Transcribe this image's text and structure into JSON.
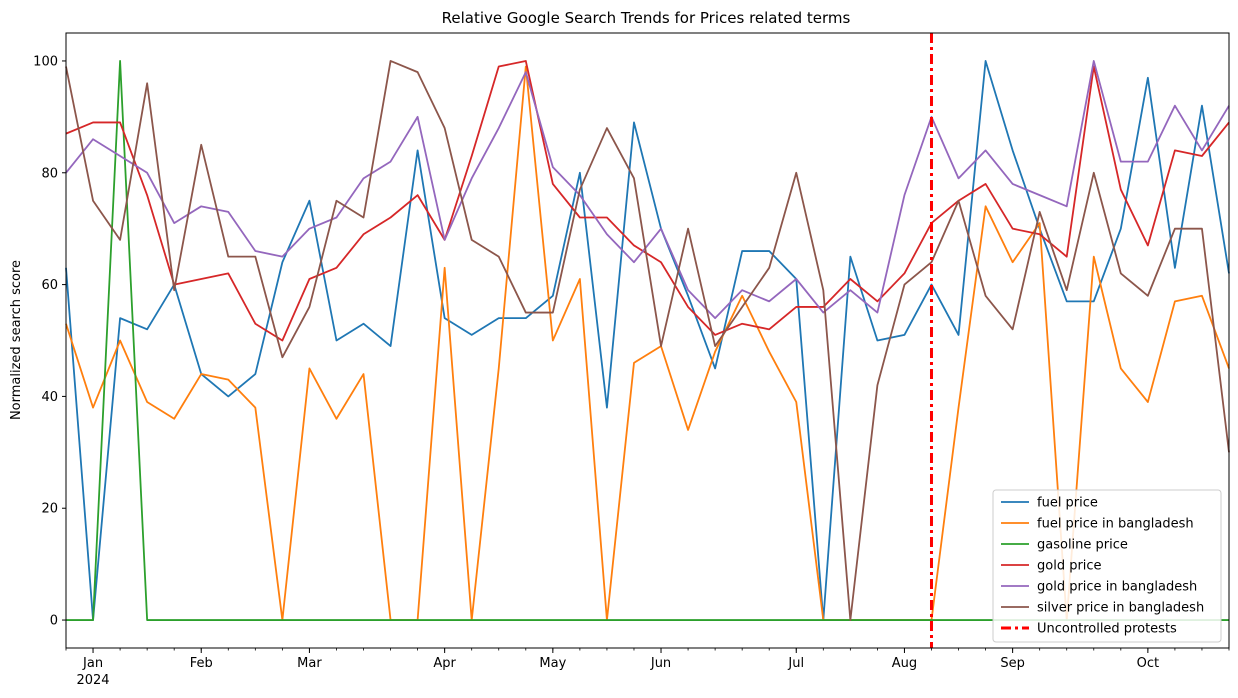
{
  "chart_data": {
    "type": "line",
    "title": "Relative Google Search Trends for Prices related terms",
    "xlabel": "",
    "ylabel": "Normalized search score",
    "ylim": [
      -5,
      105
    ],
    "yticks": [
      0,
      20,
      40,
      60,
      80,
      100
    ],
    "ytick_labels": [
      "0",
      "20",
      "40",
      "60",
      "80",
      "100"
    ],
    "x_start_week": 0,
    "x_range_weeks": [
      0,
      43
    ],
    "x_month_ticks": [
      {
        "label": "Jan",
        "week": 1,
        "sublabel": "2024"
      },
      {
        "label": "Feb",
        "week": 5
      },
      {
        "label": "Mar",
        "week": 9
      },
      {
        "label": "Apr",
        "week": 14
      },
      {
        "label": "May",
        "week": 18
      },
      {
        "label": "Jun",
        "week": 22
      },
      {
        "label": "Jul",
        "week": 27
      },
      {
        "label": "Aug",
        "week": 31
      },
      {
        "label": "Sep",
        "week": 35
      },
      {
        "label": "Oct",
        "week": 40
      }
    ],
    "vertical_line": {
      "name": "Uncontrolled protests",
      "week": 32,
      "color": "#ff0000"
    },
    "legend_location": "lower-right",
    "series": [
      {
        "name": "fuel price",
        "color": "#1f77b4",
        "values": [
          63,
          0,
          54,
          52,
          60,
          44,
          40,
          44,
          64,
          75,
          50,
          53,
          49,
          84,
          54,
          51,
          54,
          54,
          58,
          80,
          38,
          89,
          70,
          58,
          45,
          66,
          66,
          61,
          0,
          65,
          50,
          51,
          60,
          51,
          100,
          84,
          70,
          57,
          57,
          70,
          97,
          63,
          92,
          62
        ]
      },
      {
        "name": "fuel price in bangladesh",
        "color": "#ff7f0e",
        "values": [
          53,
          38,
          50,
          39,
          36,
          44,
          43,
          38,
          0,
          45,
          36,
          44,
          0,
          0,
          63,
          0,
          45,
          99,
          50,
          61,
          0,
          46,
          49,
          34,
          48,
          58,
          48,
          39,
          0,
          0,
          0,
          0,
          0,
          38,
          74,
          64,
          71,
          0,
          65,
          45,
          39,
          57,
          58,
          45
        ]
      },
      {
        "name": "gasoline price",
        "color": "#2ca02c",
        "values": [
          0,
          0,
          100,
          0,
          0,
          0,
          0,
          0,
          0,
          0,
          0,
          0,
          0,
          0,
          0,
          0,
          0,
          0,
          0,
          0,
          0,
          0,
          0,
          0,
          0,
          0,
          0,
          0,
          0,
          0,
          0,
          0,
          0,
          0,
          0,
          0,
          0,
          0,
          0,
          0,
          0,
          0,
          0,
          0
        ]
      },
      {
        "name": "gold price",
        "color": "#d62728",
        "values": [
          87,
          89,
          89,
          76,
          60,
          61,
          62,
          53,
          50,
          61,
          63,
          69,
          72,
          76,
          68,
          83,
          99,
          100,
          78,
          72,
          72,
          67,
          64,
          56,
          51,
          53,
          52,
          56,
          56,
          61,
          57,
          62,
          71,
          75,
          78,
          70,
          69,
          65,
          99,
          77,
          67,
          84,
          83,
          89
        ]
      },
      {
        "name": "gold price in bangladesh",
        "color": "#9467bd",
        "values": [
          80,
          86,
          83,
          80,
          71,
          74,
          73,
          66,
          65,
          70,
          72,
          79,
          82,
          90,
          68,
          79,
          88,
          98,
          81,
          76,
          69,
          64,
          70,
          59,
          54,
          59,
          57,
          61,
          55,
          59,
          55,
          76,
          90,
          79,
          84,
          78,
          76,
          74,
          100,
          82,
          82,
          92,
          84,
          92
        ]
      },
      {
        "name": "silver price in bangladesh",
        "color": "#8c564b",
        "values": [
          99,
          75,
          68,
          96,
          59,
          85,
          65,
          65,
          47,
          56,
          75,
          72,
          100,
          98,
          88,
          68,
          65,
          55,
          55,
          77,
          88,
          79,
          49,
          70,
          49,
          56,
          63,
          80,
          59,
          0,
          42,
          60,
          64,
          75,
          58,
          52,
          73,
          59,
          80,
          62,
          58,
          70,
          70,
          30
        ]
      }
    ]
  }
}
